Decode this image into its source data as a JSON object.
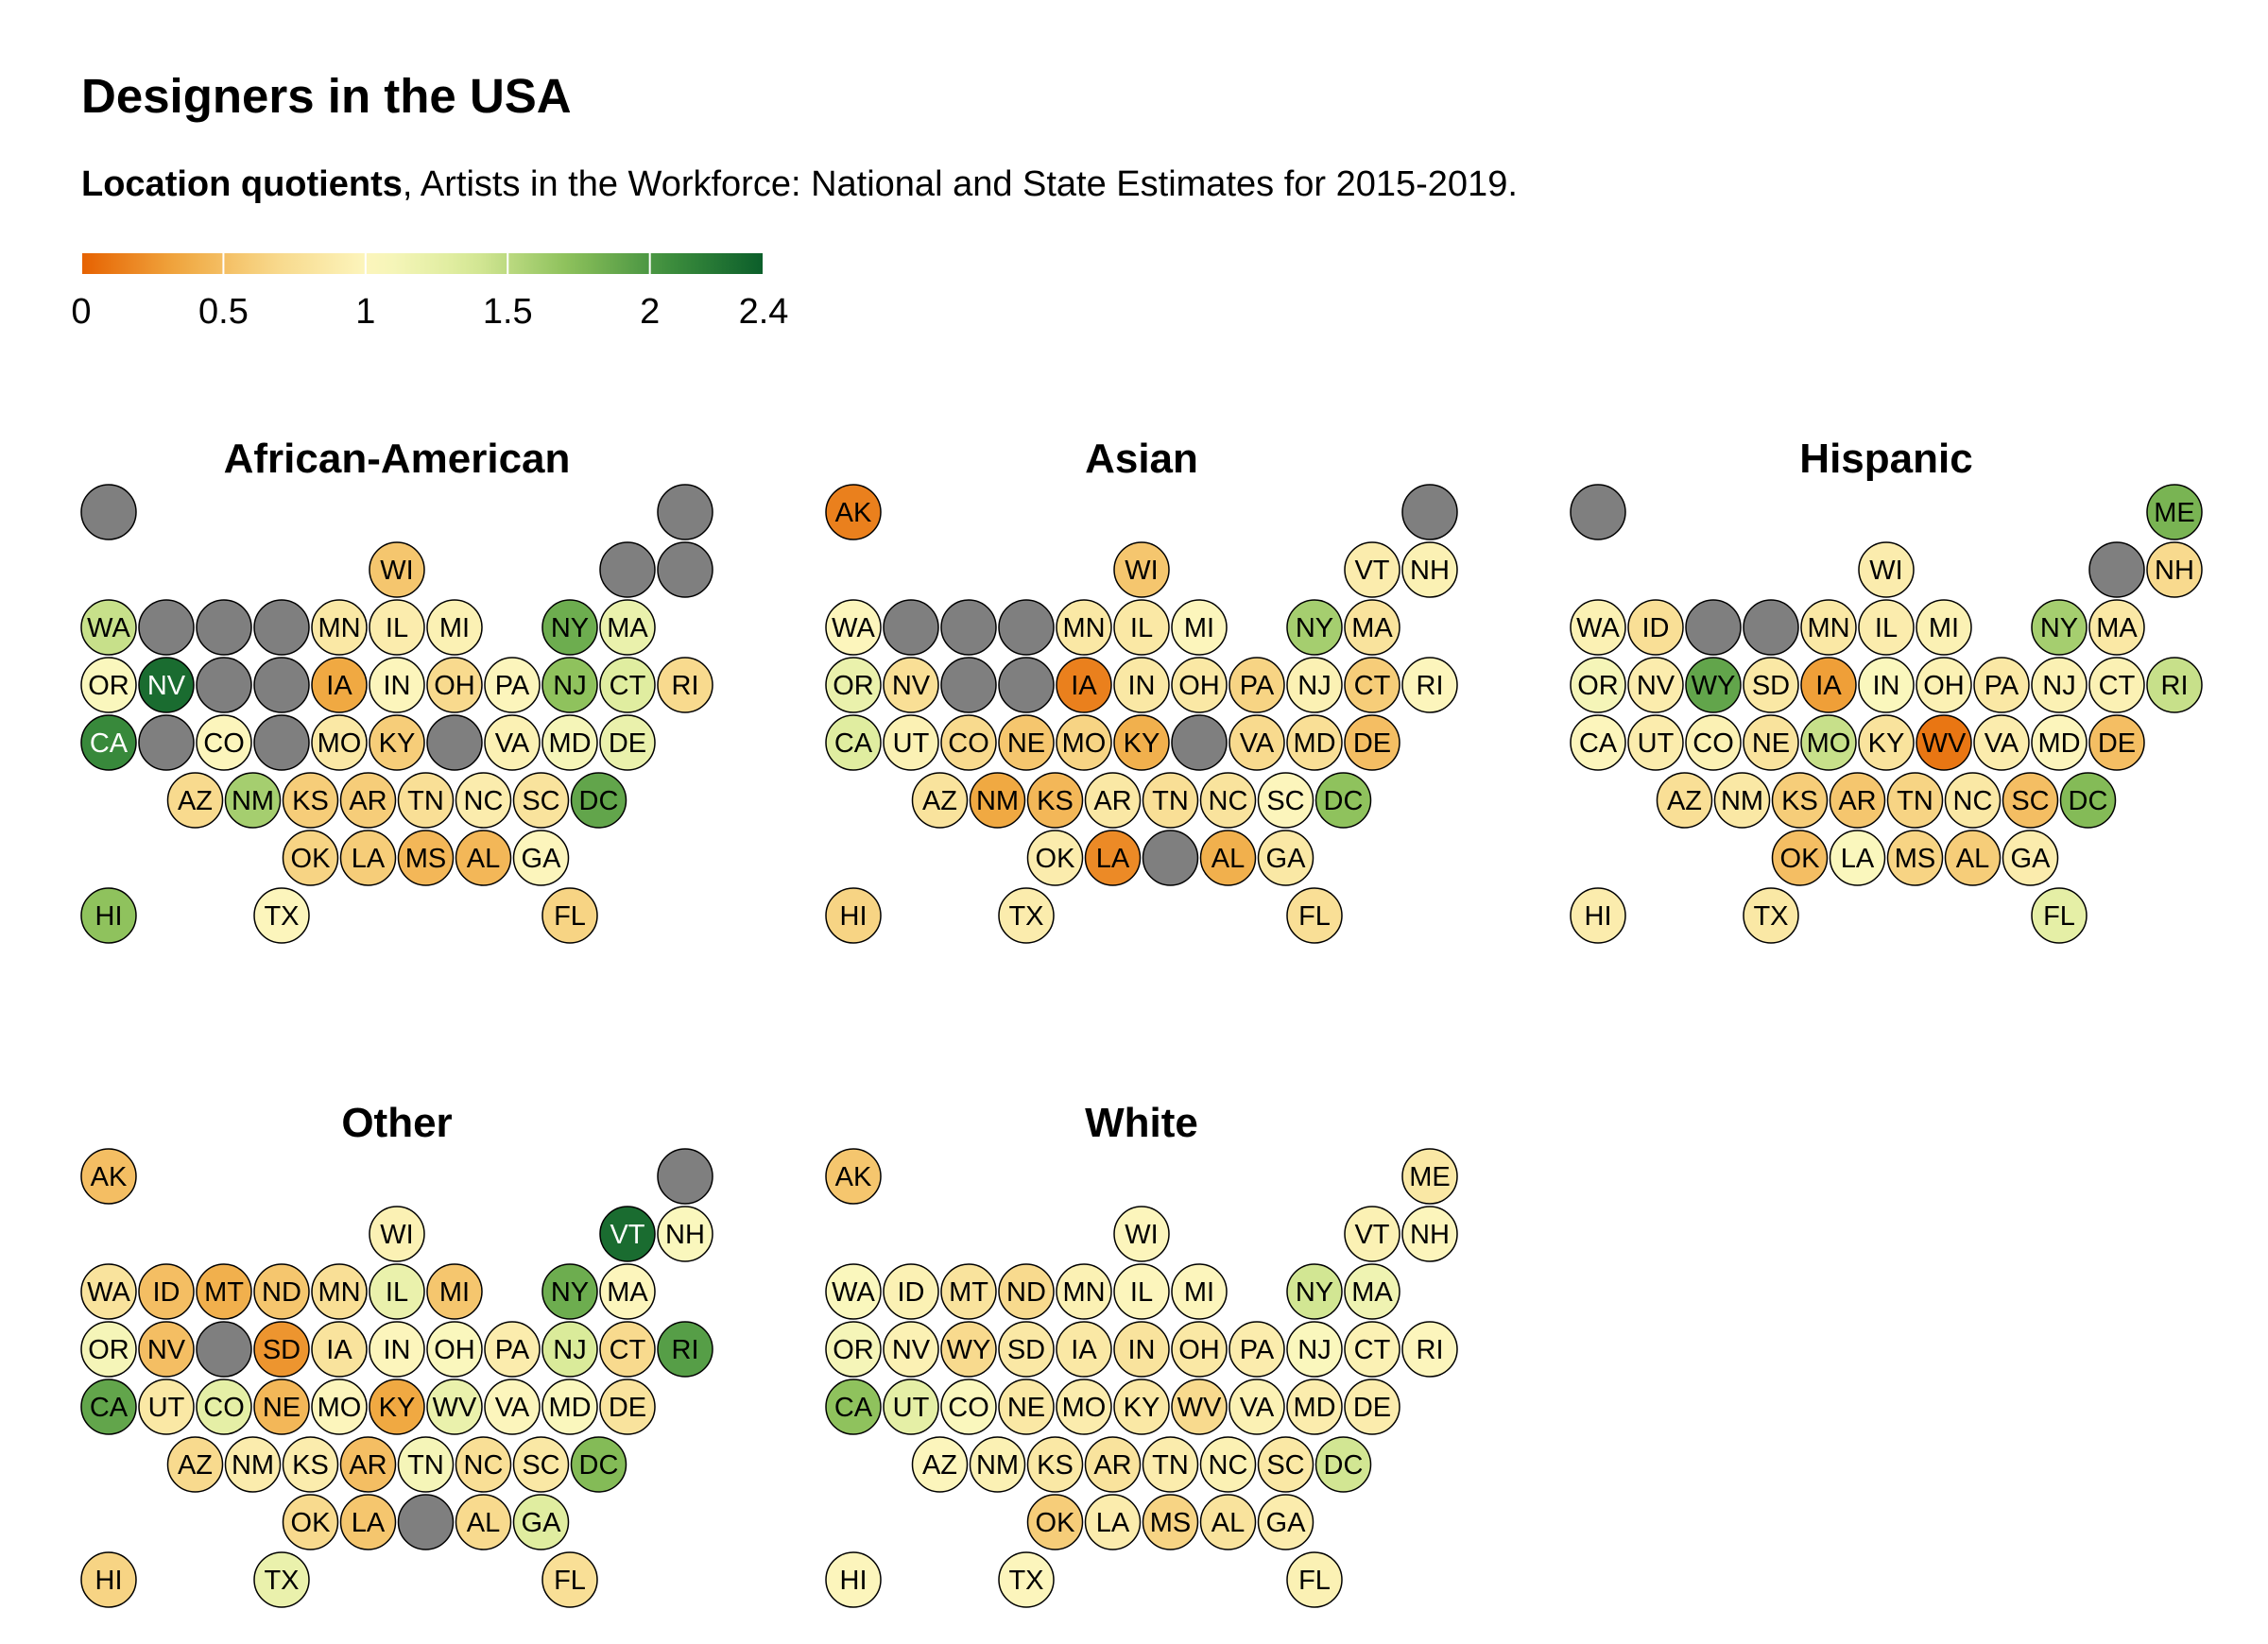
{
  "title": "Designers in the USA",
  "subtitle": {
    "bold": "Location quotients",
    "rest": ", Artists in the Workforce: National and State Estimates for 2015-2019."
  },
  "colors": {
    "na": "#7f7f7f",
    "scale": [
      "#e66101",
      "#f0a840",
      "#f8d98c",
      "#fcf8c0",
      "#d8ea98",
      "#8cc05a",
      "#3e8f3e",
      "#0b5e2a"
    ]
  },
  "chart_data": {
    "type": "heatmap",
    "title": "Designers in the USA",
    "legend": {
      "domain": [
        0,
        2.4
      ],
      "ticks": [
        "0",
        "0.5",
        "1",
        "1.5",
        "2",
        "2.4"
      ],
      "tick_values": [
        0,
        0.5,
        1,
        1.5,
        2,
        2.4
      ],
      "placement": "top-left"
    },
    "panels": [
      {
        "title": "African-American",
        "values": {
          "AK": null,
          "ME": null,
          "VT": null,
          "NH": null,
          "WI": 0.55,
          "WA": 1.45,
          "ID": null,
          "MT": null,
          "ND": null,
          "MN": 0.85,
          "IL": 0.9,
          "MI": 0.95,
          "NY": 1.85,
          "MA": 1.2,
          "OR": 1.05,
          "NV": 2.3,
          "WY": null,
          "SD": null,
          "IA": 0.35,
          "IN": 1.0,
          "OH": 0.7,
          "PA": 1.0,
          "NJ": 1.7,
          "CT": 1.3,
          "RI": 0.7,
          "CA": 2.1,
          "UT": null,
          "CO": 1.0,
          "NE": null,
          "MO": 0.85,
          "KY": 0.6,
          "WV": null,
          "VA": 0.95,
          "MD": 1.1,
          "DE": 1.2,
          "AZ": 0.7,
          "NM": 1.6,
          "KS": 0.6,
          "AR": 0.6,
          "TN": 0.75,
          "NC": 0.9,
          "SC": 0.8,
          "DC": 1.9,
          "OK": 0.65,
          "LA": 0.6,
          "MS": 0.45,
          "AL": 0.45,
          "GA": 1.0,
          "HI": 1.7,
          "TX": 1.0,
          "FL": 0.65
        }
      },
      {
        "title": "Asian",
        "values": {
          "AK": 0.15,
          "ME": null,
          "VT": 0.9,
          "NH": 0.95,
          "WI": 0.55,
          "WA": 1.0,
          "ID": null,
          "MT": null,
          "ND": null,
          "MN": 0.85,
          "IL": 0.85,
          "MI": 1.0,
          "NY": 1.6,
          "MA": 0.8,
          "OR": 1.2,
          "NV": 0.75,
          "WY": null,
          "SD": null,
          "IA": 0.15,
          "IN": 0.85,
          "OH": 0.85,
          "PA": 0.65,
          "NJ": 0.95,
          "CT": 0.6,
          "RI": 1.0,
          "CA": 1.3,
          "UT": 0.95,
          "CO": 0.7,
          "NE": 0.55,
          "MO": 0.65,
          "KY": 0.4,
          "WV": null,
          "VA": 0.7,
          "MD": 0.75,
          "DE": 0.5,
          "AZ": 0.8,
          "NM": 0.35,
          "KS": 0.45,
          "AR": 0.85,
          "TN": 0.75,
          "NC": 0.8,
          "SC": 1.0,
          "DC": 1.7,
          "OK": 0.9,
          "LA": 0.2,
          "MS": null,
          "AL": 0.4,
          "GA": 0.85,
          "HI": 0.65,
          "TX": 0.9,
          "FL": 0.75
        }
      },
      {
        "title": "Hispanic",
        "values": {
          "AK": null,
          "ME": 1.8,
          "VT": null,
          "NH": 0.7,
          "WI": 0.9,
          "WA": 0.95,
          "ID": 0.75,
          "MT": null,
          "ND": null,
          "MN": 0.85,
          "IL": 0.9,
          "MI": 0.95,
          "NY": 1.6,
          "MA": 0.85,
          "OR": 1.1,
          "NV": 0.9,
          "WY": 1.9,
          "SD": 0.85,
          "IA": 0.3,
          "IN": 1.05,
          "OH": 0.95,
          "PA": 0.85,
          "NJ": 0.95,
          "CT": 0.95,
          "RI": 1.45,
          "CA": 1.0,
          "UT": 0.9,
          "CO": 0.95,
          "NE": 0.8,
          "MO": 1.45,
          "KY": 0.8,
          "WV": 0.1,
          "VA": 0.9,
          "MD": 1.0,
          "DE": 0.5,
          "AZ": 0.75,
          "NM": 0.85,
          "KS": 0.6,
          "AR": 0.55,
          "TN": 0.65,
          "NC": 0.85,
          "SC": 0.5,
          "DC": 1.75,
          "OK": 0.5,
          "LA": 1.05,
          "MS": 0.65,
          "AL": 0.6,
          "GA": 0.9,
          "HI": 0.9,
          "TX": 0.85,
          "FL": 1.25
        }
      },
      {
        "title": "Other",
        "values": {
          "AK": 0.5,
          "ME": null,
          "VT": 2.3,
          "NH": 1.05,
          "WI": 0.95,
          "WA": 0.8,
          "ID": 0.5,
          "MT": 0.4,
          "ND": 0.55,
          "MN": 0.75,
          "IL": 1.2,
          "MI": 0.55,
          "NY": 1.85,
          "MA": 1.0,
          "OR": 1.1,
          "NV": 0.5,
          "WY": null,
          "SD": 0.25,
          "IA": 0.8,
          "IN": 1.0,
          "OH": 1.05,
          "PA": 0.9,
          "NJ": 1.35,
          "CT": 0.7,
          "RI": 1.95,
          "CA": 1.9,
          "UT": 0.85,
          "CO": 1.25,
          "NE": 0.45,
          "MO": 1.0,
          "KY": 0.35,
          "WV": 1.2,
          "VA": 1.0,
          "MD": 1.05,
          "DE": 0.8,
          "AZ": 0.7,
          "NM": 0.9,
          "KS": 0.9,
          "AR": 0.5,
          "TN": 1.1,
          "NC": 0.75,
          "SC": 0.85,
          "DC": 1.75,
          "OK": 0.7,
          "LA": 0.55,
          "MS": null,
          "AL": 0.7,
          "GA": 1.3,
          "HI": 0.65,
          "TX": 1.2,
          "FL": 0.75
        }
      },
      {
        "title": "White",
        "values": {
          "AK": 0.55,
          "ME": 0.85,
          "VT": 0.95,
          "NH": 1.0,
          "WI": 1.0,
          "WA": 1.05,
          "ID": 0.95,
          "MT": 0.8,
          "ND": 0.7,
          "MN": 0.95,
          "IL": 1.0,
          "MI": 1.0,
          "NY": 1.4,
          "MA": 1.15,
          "OR": 1.1,
          "NV": 0.95,
          "WY": 0.7,
          "SD": 0.85,
          "IA": 0.85,
          "IN": 0.8,
          "OH": 0.85,
          "PA": 0.9,
          "NJ": 1.05,
          "CT": 0.95,
          "RI": 1.0,
          "CA": 1.7,
          "UT": 1.25,
          "CO": 1.05,
          "NE": 0.85,
          "MO": 0.9,
          "KY": 0.85,
          "WV": 0.7,
          "VA": 0.95,
          "MD": 0.9,
          "DE": 0.9,
          "AZ": 1.0,
          "NM": 0.95,
          "KS": 0.85,
          "AR": 0.8,
          "TN": 0.9,
          "NC": 0.95,
          "SC": 0.85,
          "DC": 1.4,
          "OK": 0.6,
          "LA": 0.9,
          "MS": 0.65,
          "AL": 0.8,
          "GA": 0.9,
          "HI": 1.0,
          "TX": 1.0,
          "FL": 0.95
        }
      }
    ]
  }
}
